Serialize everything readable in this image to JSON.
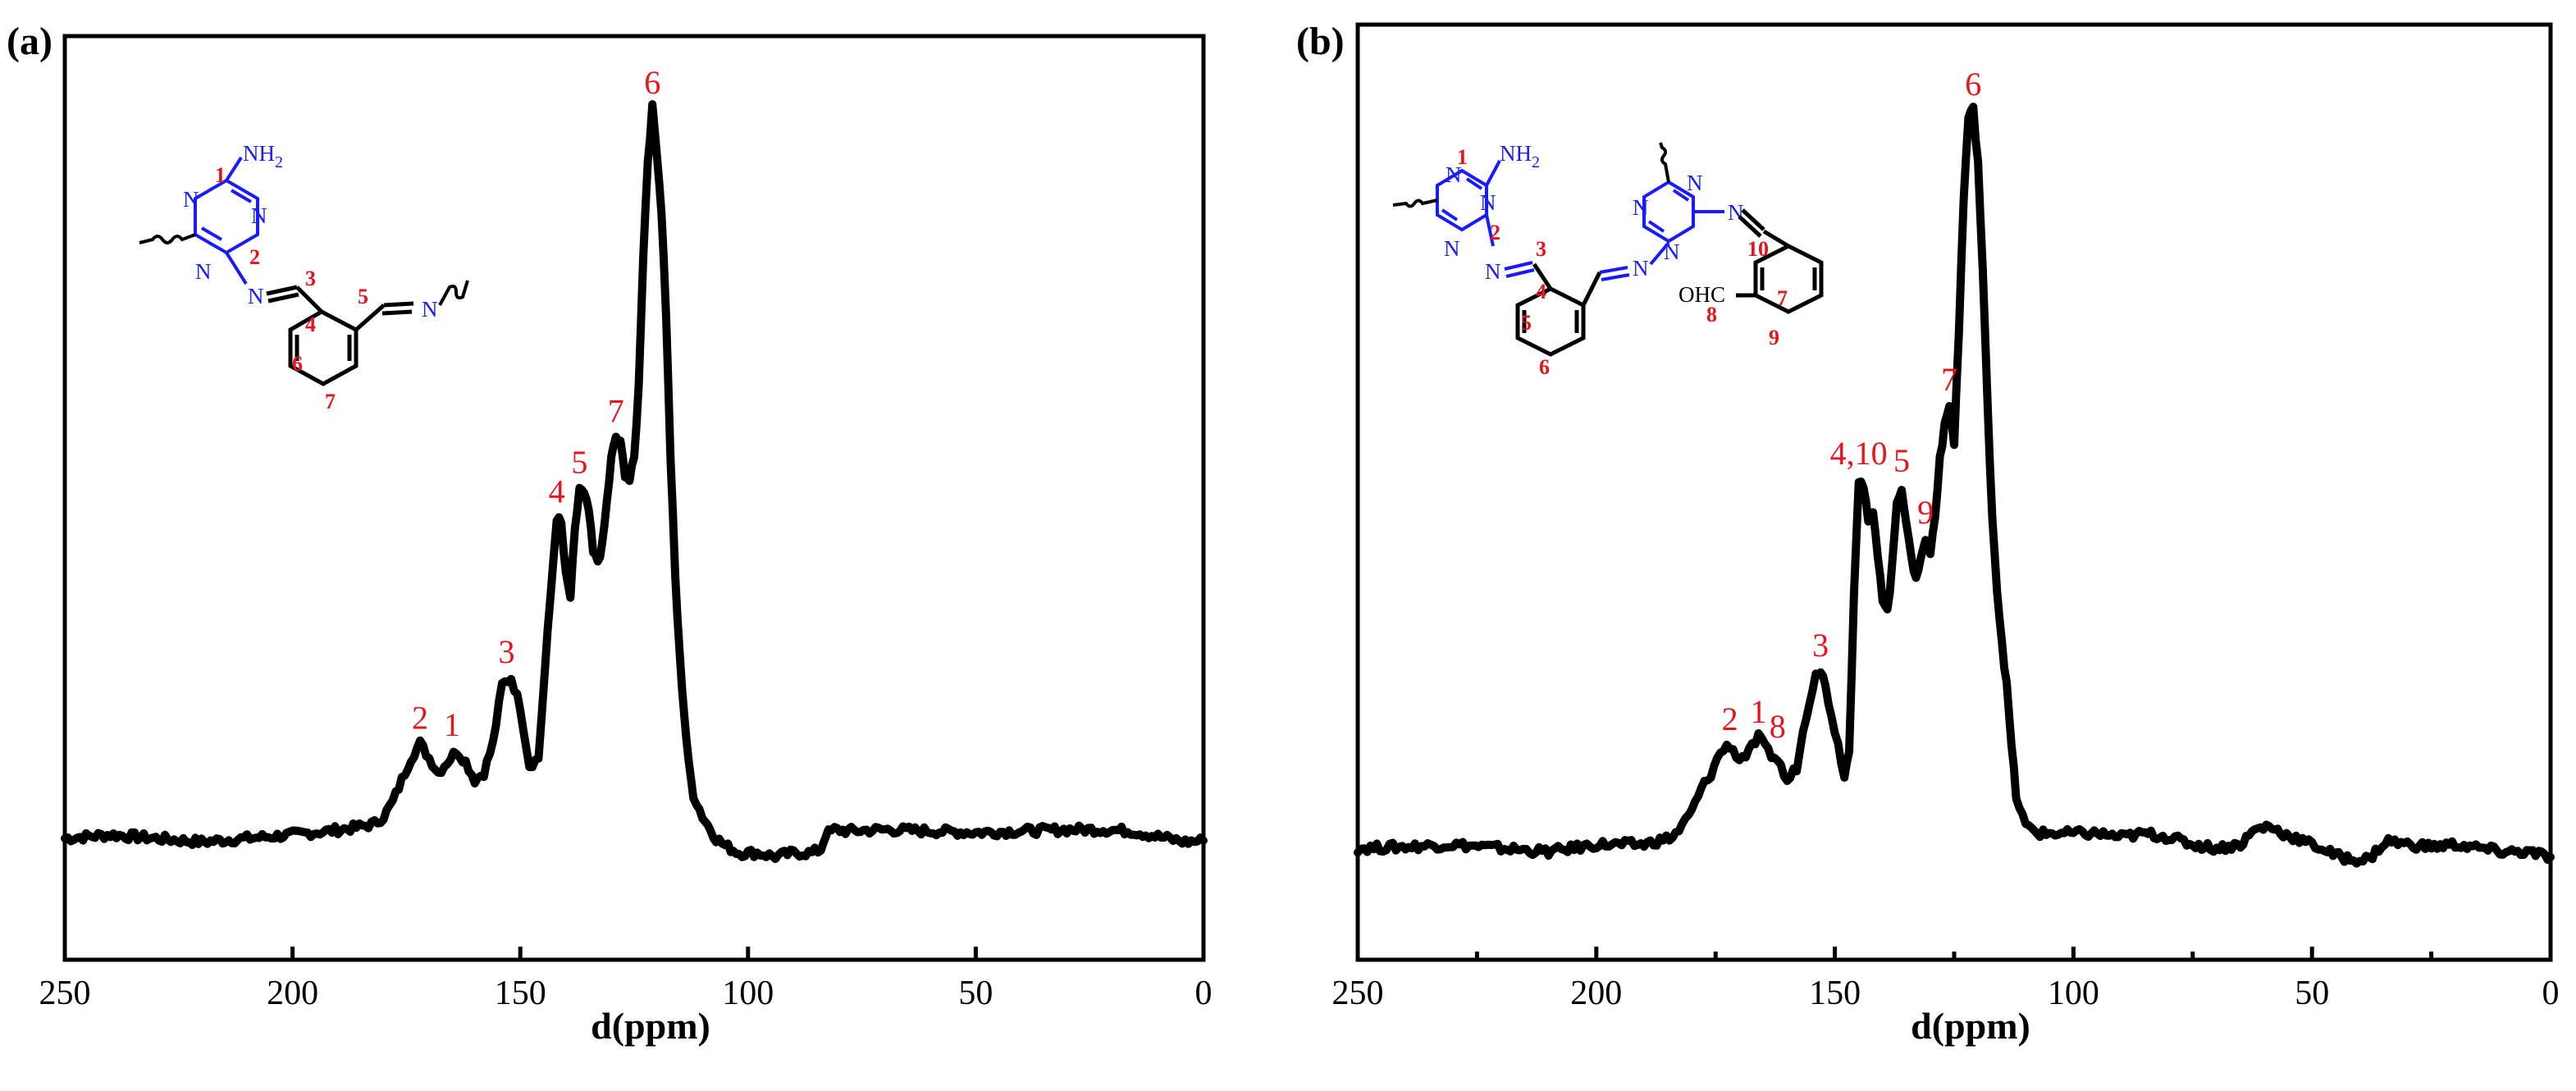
{
  "panels": [
    {
      "label": "(a)"
    },
    {
      "label": "(b)"
    }
  ],
  "structure_a": {
    "atoms": {
      "nh2": "NH",
      "nh2_sub": "2",
      "n": "N"
    },
    "numbers": [
      "1",
      "2",
      "3",
      "4",
      "5",
      "6",
      "7"
    ]
  },
  "structure_b": {
    "atoms": {
      "nh2": "NH",
      "nh2_sub": "2",
      "n": "N",
      "ohc": "OHC"
    },
    "numbers": [
      "1",
      "2",
      "3",
      "4",
      "5",
      "6",
      "7",
      "8",
      "9",
      "10"
    ]
  },
  "chart_data": [
    {
      "type": "line",
      "panel": "(a)",
      "xlabel": "d(ppm)",
      "ylabel": "",
      "xlim": [
        250,
        0
      ],
      "xticks": [
        250,
        200,
        150,
        100,
        50,
        0
      ],
      "x_reversed": true,
      "y_axis_ticks": false,
      "series": [
        {
          "points": [
            [
              250,
              0.0
            ],
            [
              240,
              0.005
            ],
            [
              230,
              0.0
            ],
            [
              220,
              -0.005
            ],
            [
              210,
              0.0
            ],
            [
              200,
              0.005
            ],
            [
              192,
              0.01
            ],
            [
              186,
              0.015
            ],
            [
              182,
              0.02
            ],
            [
              180,
              0.03
            ],
            [
              178,
              0.05
            ],
            [
              176,
              0.08
            ],
            [
              174,
              0.11
            ],
            [
              172,
              0.13
            ],
            [
              170,
              0.11
            ],
            [
              168,
              0.09
            ],
            [
              166,
              0.105
            ],
            [
              164,
              0.12
            ],
            [
              162,
              0.105
            ],
            [
              160,
              0.08
            ],
            [
              158,
              0.09
            ],
            [
              156,
              0.13
            ],
            [
              154,
              0.21
            ],
            [
              152,
              0.22
            ],
            [
              150,
              0.18
            ],
            [
              148,
              0.1
            ],
            [
              146,
              0.11
            ],
            [
              144,
              0.28
            ],
            [
              142,
              0.44
            ],
            [
              141,
              0.43
            ],
            [
              140,
              0.36
            ],
            [
              139,
              0.33
            ],
            [
              138,
              0.42
            ],
            [
              137,
              0.48
            ],
            [
              136,
              0.47
            ],
            [
              135,
              0.45
            ],
            [
              134,
              0.39
            ],
            [
              133,
              0.38
            ],
            [
              132,
              0.4
            ],
            [
              131,
              0.46
            ],
            [
              130,
              0.52
            ],
            [
              129,
              0.55
            ],
            [
              128,
              0.54
            ],
            [
              127,
              0.5
            ],
            [
              126,
              0.49
            ],
            [
              125,
              0.52
            ],
            [
              124,
              0.62
            ],
            [
              123,
              0.8
            ],
            [
              122,
              0.93
            ],
            [
              121,
              1.0
            ],
            [
              120,
              0.94
            ],
            [
              119,
              0.86
            ],
            [
              118,
              0.72
            ],
            [
              117,
              0.52
            ],
            [
              116,
              0.36
            ],
            [
              115,
              0.25
            ],
            [
              114,
              0.17
            ],
            [
              113,
              0.1
            ],
            [
              112,
              0.06
            ],
            [
              110,
              0.03
            ],
            [
              107,
              0.0
            ],
            [
              105,
              -0.01
            ],
            [
              102,
              -0.02
            ],
            [
              98,
              -0.02
            ],
            [
              94,
              -0.025
            ],
            [
              90,
              -0.02
            ],
            [
              86,
              -0.02
            ],
            [
              84,
              -0.015
            ],
            [
              83,
              0.005
            ],
            [
              81,
              0.012
            ],
            [
              78,
              0.01
            ],
            [
              70,
              0.012
            ],
            [
              60,
              0.01
            ],
            [
              50,
              0.008
            ],
            [
              40,
              0.01
            ],
            [
              30,
              0.012
            ],
            [
              22,
              0.012
            ],
            [
              16,
              0.01
            ],
            [
              12,
              0.005
            ],
            [
              8,
              0.0
            ],
            [
              4,
              -0.005
            ],
            [
              0,
              -0.003
            ]
          ]
        }
      ],
      "peak_labels": [
        {
          "text": "1",
          "x": 165,
          "y": 0.12
        },
        {
          "text": "2",
          "x": 172,
          "y": 0.13
        },
        {
          "text": "3",
          "x": 153,
          "y": 0.22
        },
        {
          "text": "4",
          "x": 142,
          "y": 0.44
        },
        {
          "text": "5",
          "x": 137,
          "y": 0.48
        },
        {
          "text": "7",
          "x": 129,
          "y": 0.55
        },
        {
          "text": "6",
          "x": 121,
          "y": 1.0
        }
      ]
    },
    {
      "type": "line",
      "panel": "(b)",
      "xlabel": "d(ppm)",
      "ylabel": "",
      "xlim": [
        250,
        0
      ],
      "xticks": [
        250,
        200,
        150,
        100,
        50,
        0
      ],
      "x_reversed": true,
      "y_axis_ticks": false,
      "series": [
        {
          "points": [
            [
              250,
              0.0
            ],
            [
              240,
              0.002
            ],
            [
              230,
              0.005
            ],
            [
              220,
              0.0
            ],
            [
              210,
              -0.005
            ],
            [
              200,
              0.005
            ],
            [
              190,
              0.005
            ],
            [
              184,
              0.015
            ],
            [
              182,
              0.03
            ],
            [
              180,
              0.05
            ],
            [
              178,
              0.08
            ],
            [
              176,
              0.1
            ],
            [
              174,
              0.13
            ],
            [
              172,
              0.14
            ],
            [
              170,
              0.12
            ],
            [
              168,
              0.13
            ],
            [
              166,
              0.15
            ],
            [
              164,
              0.13
            ],
            [
              162,
              0.12
            ],
            [
              160,
              0.09
            ],
            [
              158,
              0.11
            ],
            [
              156,
              0.18
            ],
            [
              154,
              0.24
            ],
            [
              153,
              0.24
            ],
            [
              152,
              0.22
            ],
            [
              150,
              0.16
            ],
            [
              148,
              0.1
            ],
            [
              147,
              0.13
            ],
            [
              146,
              0.35
            ],
            [
              145,
              0.5
            ],
            [
              144,
              0.49
            ],
            [
              143,
              0.44
            ],
            [
              142,
              0.45
            ],
            [
              141,
              0.4
            ],
            [
              140,
              0.34
            ],
            [
              139,
              0.32
            ],
            [
              138,
              0.38
            ],
            [
              137,
              0.47
            ],
            [
              136,
              0.49
            ],
            [
              135,
              0.44
            ],
            [
              134,
              0.39
            ],
            [
              133,
              0.37
            ],
            [
              132,
              0.39
            ],
            [
              131,
              0.42
            ],
            [
              130,
              0.4
            ],
            [
              129,
              0.45
            ],
            [
              128,
              0.53
            ],
            [
              127,
              0.57
            ],
            [
              126,
              0.6
            ],
            [
              125,
              0.55
            ],
            [
              124,
              0.7
            ],
            [
              123,
              0.88
            ],
            [
              122,
              0.99
            ],
            [
              121,
              1.0
            ],
            [
              120,
              0.93
            ],
            [
              119,
              0.78
            ],
            [
              118,
              0.6
            ],
            [
              117,
              0.45
            ],
            [
              116,
              0.35
            ],
            [
              115,
              0.28
            ],
            [
              114,
              0.22
            ],
            [
              113,
              0.14
            ],
            [
              112,
              0.07
            ],
            [
              110,
              0.03
            ],
            [
              107,
              0.02
            ],
            [
              100,
              0.02
            ],
            [
              95,
              0.02
            ],
            [
              90,
              0.015
            ],
            [
              85,
              0.02
            ],
            [
              80,
              0.015
            ],
            [
              75,
              0.005
            ],
            [
              70,
              0.0
            ],
            [
              65,
              0.005
            ],
            [
              62,
              0.025
            ],
            [
              59,
              0.03
            ],
            [
              56,
              0.02
            ],
            [
              52,
              0.01
            ],
            [
              48,
              0.0
            ],
            [
              45,
              -0.01
            ],
            [
              42,
              -0.015
            ],
            [
              38,
              -0.015
            ],
            [
              36,
              0.0
            ],
            [
              34,
              0.01
            ],
            [
              30,
              0.005
            ],
            [
              25,
              0.002
            ],
            [
              20,
              0.005
            ],
            [
              15,
              0.0
            ],
            [
              10,
              -0.005
            ],
            [
              5,
              -0.005
            ],
            [
              0,
              -0.012
            ]
          ]
        }
      ],
      "peak_labels": [
        {
          "text": "2",
          "x": 172,
          "y": 0.14
        },
        {
          "text": "1",
          "x": 166,
          "y": 0.15
        },
        {
          "text": "8",
          "x": 162,
          "y": 0.13
        },
        {
          "text": "3",
          "x": 153,
          "y": 0.24
        },
        {
          "text": "4,10",
          "x": 145,
          "y": 0.5
        },
        {
          "text": "5",
          "x": 136,
          "y": 0.49
        },
        {
          "text": "9",
          "x": 131,
          "y": 0.42
        },
        {
          "text": "7",
          "x": 126,
          "y": 0.6
        },
        {
          "text": "6",
          "x": 121,
          "y": 1.0
        }
      ]
    }
  ]
}
